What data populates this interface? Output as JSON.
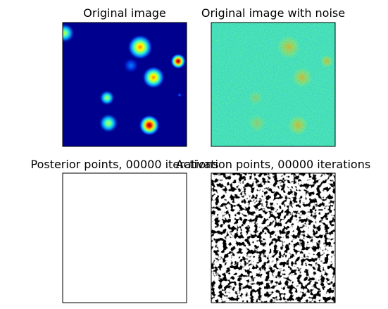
{
  "panels": [
    {
      "title": "Original image"
    },
    {
      "title": "Original image with noise"
    },
    {
      "title": "Posterior points, 00000 iterations"
    },
    {
      "title": "Activation points, 00000 iterations"
    }
  ]
}
